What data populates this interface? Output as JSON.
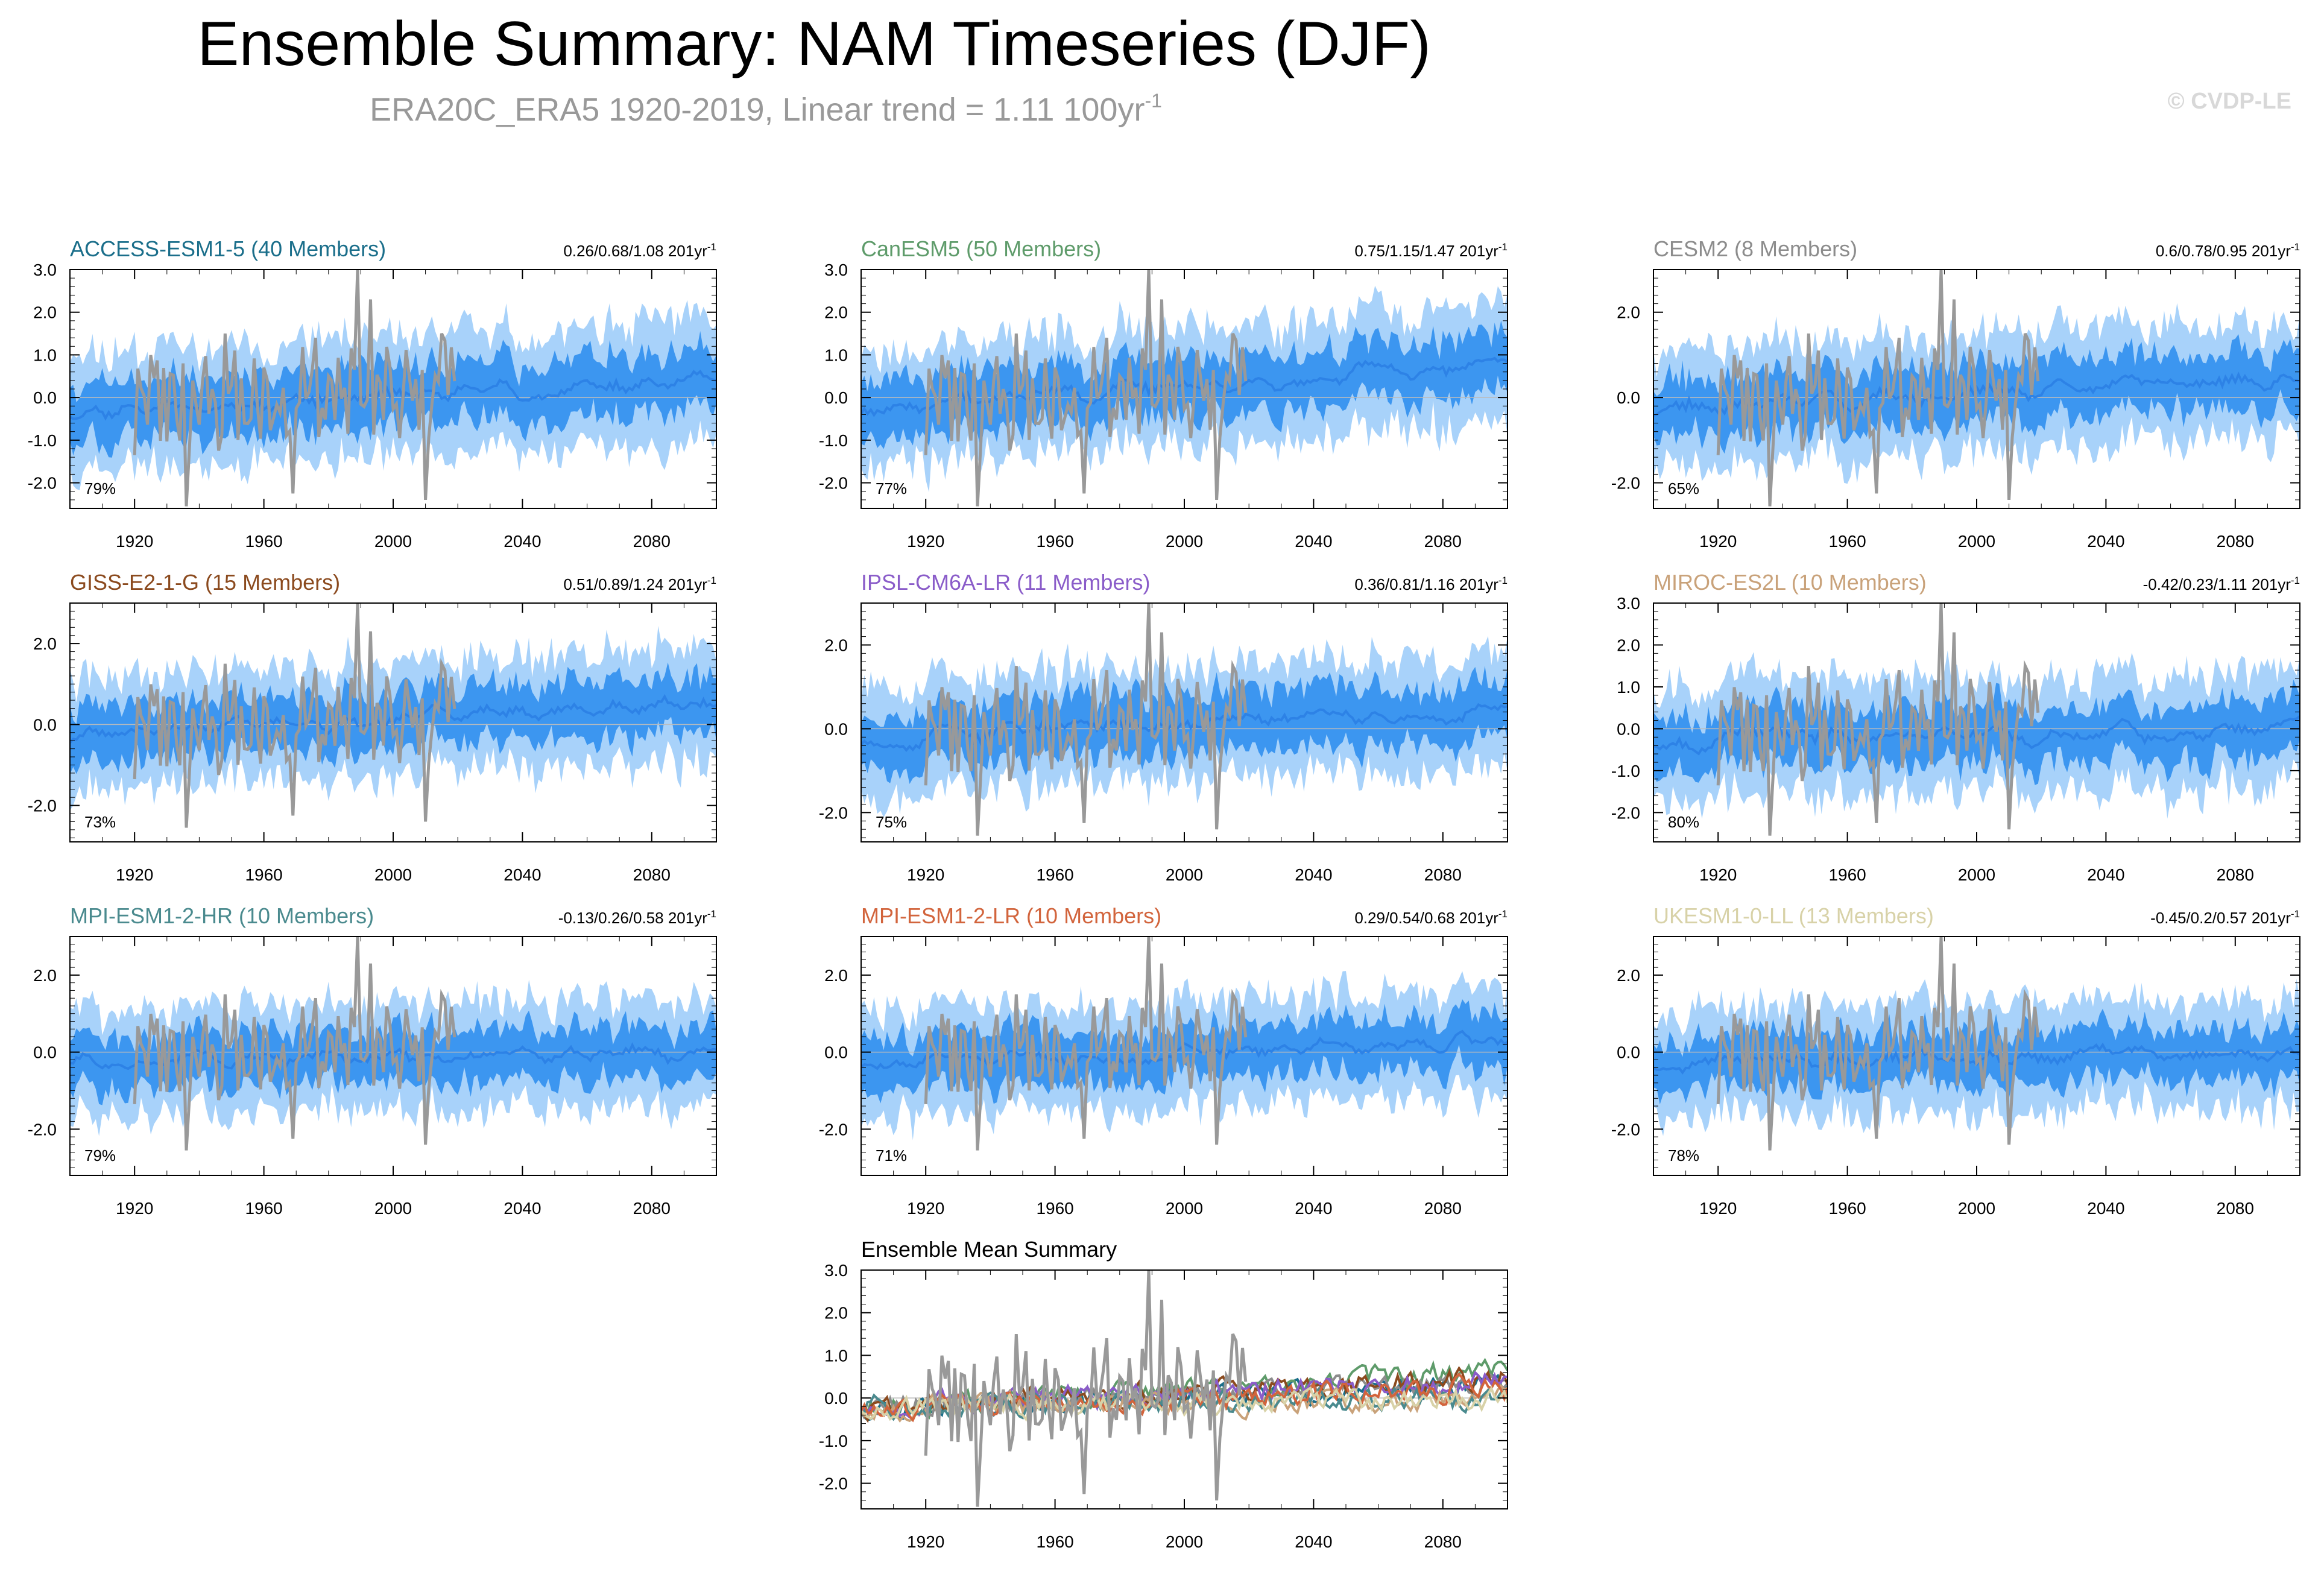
{
  "header": {
    "title": "Ensemble Summary: NAM Timeseries (DJF)",
    "subtitle": "ERA20C_ERA5 1920-2019, Linear trend = 1.11 100yr",
    "subtitle_sup": "-1",
    "copyright": "© CVDP-LE"
  },
  "chart_data": [
    {
      "type": "line",
      "title": "ACCESS-ESM1-5 (40 Members)",
      "title_color": "#1a6e8a",
      "trend": "0.26/0.68/1.08 201yr",
      "trend_sup": "-1",
      "percent": "79%",
      "ylim": [
        -2.6,
        3.0
      ],
      "yticks": [
        "3.0",
        "2.0",
        "1.0",
        "0.0",
        "-1.0",
        "-2.0"
      ],
      "yvals": [
        3,
        2,
        1,
        0,
        -1,
        -2
      ],
      "trend_mid": 0.68,
      "seed": 11
    },
    {
      "type": "line",
      "title": "CanESM5 (50 Members)",
      "title_color": "#5e9b6a",
      "trend": "0.75/1.15/1.47 201yr",
      "trend_sup": "-1",
      "percent": "77%",
      "ylim": [
        -2.6,
        3.0
      ],
      "yticks": [
        "3.0",
        "2.0",
        "1.0",
        "0.0",
        "-1.0",
        "-2.0"
      ],
      "yvals": [
        3,
        2,
        1,
        0,
        -1,
        -2
      ],
      "trend_mid": 1.15,
      "seed": 23
    },
    {
      "type": "line",
      "title": "CESM2 (8 Members)",
      "title_color": "#8c8c8c",
      "trend": "0.6/0.78/0.95 201yr",
      "trend_sup": "-1",
      "percent": "65%",
      "ylim": [
        -2.6,
        3.0
      ],
      "yticks": [
        "2.0",
        "0.0",
        "-2.0"
      ],
      "yvals": [
        2,
        0,
        -2
      ],
      "trend_mid": 0.78,
      "seed": 37
    },
    {
      "type": "line",
      "title": "GISS-E2-1-G (15 Members)",
      "title_color": "#8b4a1e",
      "trend": "0.51/0.89/1.24 201yr",
      "trend_sup": "-1",
      "percent": "73%",
      "ylim": [
        -2.9,
        3.0
      ],
      "yticks": [
        "2.0",
        "0.0",
        "-2.0"
      ],
      "yvals": [
        2,
        0,
        -2
      ],
      "trend_mid": 0.89,
      "seed": 41
    },
    {
      "type": "line",
      "title": "IPSL-CM6A-LR (11 Members)",
      "title_color": "#8a5cc9",
      "trend": "0.36/0.81/1.16 201yr",
      "trend_sup": "-1",
      "percent": "75%",
      "ylim": [
        -2.7,
        3.0
      ],
      "yticks": [
        "2.0",
        "0.0",
        "-2.0"
      ],
      "yvals": [
        2,
        0,
        -2
      ],
      "trend_mid": 0.81,
      "seed": 53
    },
    {
      "type": "line",
      "title": "MIROC-ES2L (10 Members)",
      "title_color": "#c9a27a",
      "trend": "-0.42/0.23/1.11 201yr",
      "trend_sup": "-1",
      "percent": "80%",
      "ylim": [
        -2.7,
        3.0
      ],
      "yticks": [
        "3.0",
        "2.0",
        "1.0",
        "0.0",
        "-1.0",
        "-2.0"
      ],
      "yvals": [
        3,
        2,
        1,
        0,
        -1,
        -2
      ],
      "trend_mid": 0.23,
      "seed": 67
    },
    {
      "type": "line",
      "title": "MPI-ESM1-2-HR (10 Members)",
      "title_color": "#4a8a8e",
      "trend": "-0.13/0.26/0.58 201yr",
      "trend_sup": "-1",
      "percent": "79%",
      "ylim": [
        -3.2,
        3.0
      ],
      "yticks": [
        "2.0",
        "0.0",
        "-2.0"
      ],
      "yvals": [
        2,
        0,
        -2
      ],
      "trend_mid": 0.26,
      "seed": 71
    },
    {
      "type": "line",
      "title": "MPI-ESM1-2-LR (10 Members)",
      "title_color": "#d2643c",
      "trend": "0.29/0.54/0.68 201yr",
      "trend_sup": "-1",
      "percent": "71%",
      "ylim": [
        -3.2,
        3.0
      ],
      "yticks": [
        "2.0",
        "0.0",
        "-2.0"
      ],
      "yvals": [
        2,
        0,
        -2
      ],
      "trend_mid": 0.54,
      "seed": 83
    },
    {
      "type": "line",
      "title": "UKESM1-0-LL (13 Members)",
      "title_color": "#d8d2a8",
      "trend": "-0.45/0.2/0.57 201yr",
      "trend_sup": "-1",
      "percent": "78%",
      "ylim": [
        -3.2,
        3.0
      ],
      "yticks": [
        "2.0",
        "0.0",
        "-2.0"
      ],
      "yvals": [
        2,
        0,
        -2
      ],
      "trend_mid": 0.2,
      "seed": 97
    }
  ],
  "summary": {
    "type": "line",
    "title": "Ensemble Mean Summary",
    "title_color": "#000000",
    "ylim": [
      -2.6,
      3.0
    ],
    "yticks": [
      "3.0",
      "2.0",
      "1.0",
      "0.0",
      "-1.0",
      "-2.0"
    ],
    "yvals": [
      3,
      2,
      1,
      0,
      -1,
      -2
    ],
    "series_colors": [
      "#1a6e8a",
      "#5e9b6a",
      "#8c8c8c",
      "#8b4a1e",
      "#8a5cc9",
      "#c9a27a",
      "#4a8a8e",
      "#d2643c",
      "#d8d2a8"
    ]
  },
  "xaxis": {
    "range": [
      1900,
      2100
    ],
    "ticks": [
      "1920",
      "1960",
      "2000",
      "2040",
      "2080"
    ],
    "tick_values": [
      1920,
      1960,
      2000,
      2040,
      2080
    ]
  },
  "observation": {
    "name": "ERA20C_ERA5",
    "years": [
      1920,
      2019
    ],
    "color": "#999999",
    "peaks": [
      {
        "year": 1936,
        "value": -2.55
      },
      {
        "year": 1948,
        "value": 1.5
      },
      {
        "year": 1969,
        "value": -2.25
      },
      {
        "year": 1976,
        "value": 1.4
      },
      {
        "year": 1989,
        "value": 3.0
      },
      {
        "year": 1993,
        "value": 2.3
      },
      {
        "year": 2010,
        "value": -2.4
      },
      {
        "year": 2015,
        "value": 1.5
      }
    ]
  },
  "colors": {
    "outer_band": "#a8d2fa",
    "inner_band": "#3c96f0",
    "ens_mean": "#2d82e6",
    "obs": "#999999",
    "zero_line": "#bbbbbb"
  }
}
